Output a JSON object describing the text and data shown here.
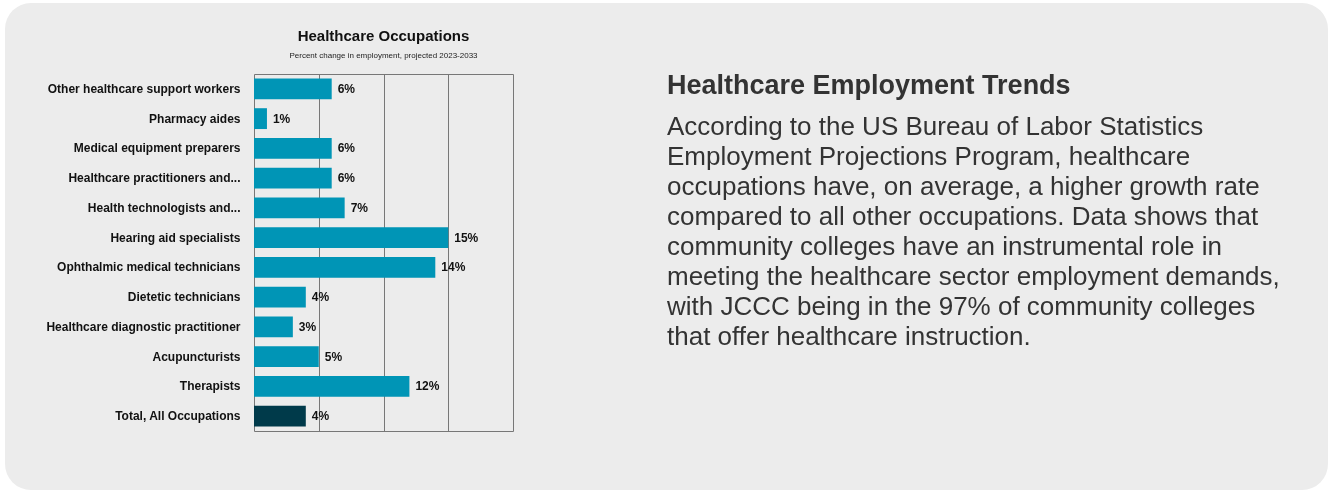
{
  "chart_data": [
    {
      "type": "bar",
      "orientation": "horizontal",
      "title": "Healthcare Occupations",
      "subtitle": "Percent change in employment, projected 2023-2033",
      "categories": [
        "Other healthcare support workers",
        "Pharmacy aides",
        "Medical equipment preparers",
        "Healthcare practitioners and...",
        "Health technologists and...",
        "Hearing aid specialists",
        "Ophthalmic medical technicians",
        "Dietetic technicians",
        "Healthcare diagnostic practitioner",
        "Acupuncturists",
        "Therapists",
        "Total, All Occupations"
      ],
      "values": [
        6,
        1,
        6,
        6,
        7,
        15,
        14,
        4,
        3,
        5,
        12,
        4
      ],
      "value_labels": [
        "6%",
        "1%",
        "6%",
        "6%",
        "7%",
        "15%",
        "14%",
        "4%",
        "3%",
        "5%",
        "12%",
        "4%"
      ],
      "colors": [
        "#0095b6",
        "#0095b6",
        "#0095b6",
        "#0095b6",
        "#0095b6",
        "#0095b6",
        "#0095b6",
        "#0095b6",
        "#0095b6",
        "#0095b6",
        "#0095b6",
        "#003a4a"
      ],
      "xlim": [
        0,
        20
      ],
      "xticks": [
        {
          "value": 5,
          "label": null
        },
        {
          "value": 10,
          "label": null
        },
        {
          "value": 15,
          "label": null
        }
      ],
      "grid": "x",
      "tick_labels": "y"
    },
    {
      "type": "other",
      "title": "Healthcare Employment Trends",
      "annotations": [
        "According to the US Bureau of Labor Statistics Employment Projections Program, healthcare occupations have, on average, a higher growth rate compared to all other occupations. Data shows that community colleges have an instrumental role in meeting the healthcare sector employment demands, with JCCC being in the 97% of community colleges that offer healthcare instruction."
      ]
    }
  ]
}
